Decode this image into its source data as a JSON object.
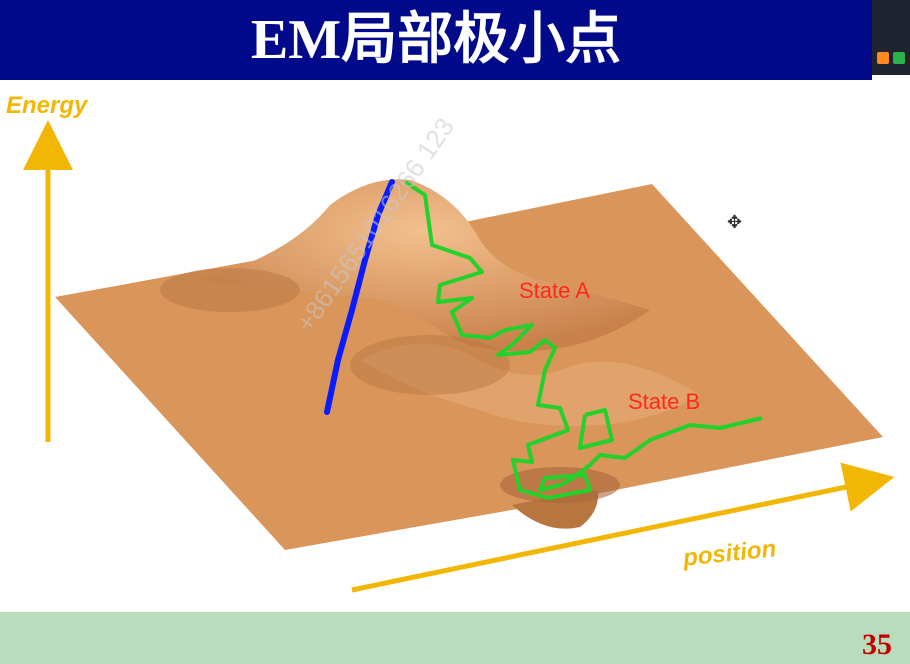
{
  "slide": {
    "title": "EM局部极小点",
    "page_number": "35",
    "watermark": "+8615651016266 123"
  },
  "figure": {
    "y_axis_label": "Energy",
    "x_axis_label": "position",
    "state_a_label": "State A",
    "state_b_label": "State B"
  },
  "colors": {
    "title_bar": "#000a8a",
    "footer": "#b9dcbc",
    "axis_yellow": "#f2b705",
    "surface": "#d9955a",
    "path_green": "#22d12a",
    "path_blue": "#0a1cff",
    "state_label": "#ff2a1a"
  }
}
